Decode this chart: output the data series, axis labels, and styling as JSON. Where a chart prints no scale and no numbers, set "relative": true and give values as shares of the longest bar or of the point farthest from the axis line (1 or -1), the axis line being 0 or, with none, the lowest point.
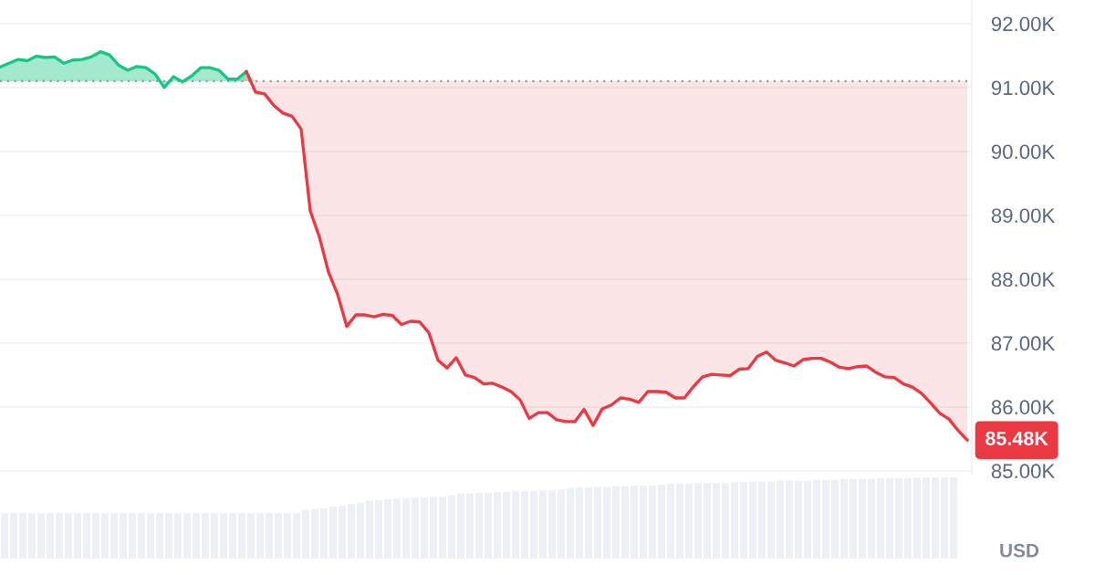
{
  "chart_data": [
    {
      "type": "line",
      "categories": [
        null,
        null,
        null,
        null,
        null,
        null,
        null,
        null,
        null,
        null,
        null,
        null,
        null,
        null,
        null,
        null,
        null,
        null,
        null,
        null,
        null,
        null,
        null,
        null,
        null,
        null,
        null,
        null,
        null,
        null,
        null,
        null,
        null,
        null,
        null,
        null,
        null,
        null,
        null,
        null,
        null,
        null,
        null,
        null,
        null,
        null,
        null,
        null,
        null,
        null,
        null,
        null,
        null,
        null,
        null,
        null,
        null,
        null,
        null,
        null,
        null,
        null,
        null,
        null,
        null,
        null,
        null,
        null,
        null,
        null,
        null,
        null,
        null,
        null,
        null,
        null,
        null,
        null,
        null,
        null,
        null,
        null,
        null,
        null,
        null,
        null,
        null,
        null,
        null,
        null,
        null,
        null,
        null,
        null,
        null,
        null,
        null,
        null,
        null,
        null,
        null,
        null,
        null,
        null,
        null,
        null,
        null
      ],
      "series": [
        {
          "color": "#16c784",
          "values": [
            91320,
            91380,
            91440,
            91420,
            91490,
            91470,
            91480,
            91380,
            91430,
            91440,
            91480,
            91560,
            91510,
            91350,
            91270,
            91330,
            91310,
            91210,
            91000,
            91170,
            91090,
            91180,
            91310,
            91310,
            91270,
            91130,
            91130,
            91250,
            null,
            null,
            null,
            null,
            null,
            null,
            null,
            null,
            null,
            null,
            null,
            null,
            null,
            null,
            null,
            null,
            null,
            null,
            null,
            null,
            null,
            null,
            null,
            null,
            null,
            null,
            null,
            null,
            null,
            null,
            null,
            null,
            null,
            null,
            null,
            null,
            null,
            null,
            null,
            null,
            null,
            null,
            null,
            null,
            null,
            null,
            null,
            null,
            null,
            null,
            null,
            null,
            null,
            null,
            null,
            null,
            null,
            null,
            null,
            null,
            null,
            null,
            null,
            null,
            null,
            null,
            null,
            null,
            null,
            null,
            null,
            null,
            null,
            null,
            null,
            null,
            null,
            null,
            null
          ],
          "lower": [
            91100,
            91100,
            91100,
            91100,
            91100,
            91100,
            91100,
            91100,
            91100,
            91100,
            91100,
            91100,
            91100,
            91100,
            91100,
            91100,
            91100,
            91100,
            91100,
            91100,
            91100,
            91100,
            91100,
            91100,
            91100,
            91100,
            91100,
            91100,
            91100,
            91100,
            91100,
            91100,
            91100,
            91100,
            91100,
            91100,
            91100,
            91100,
            91100,
            91100,
            91100,
            91100,
            91100,
            91100,
            91100,
            91100,
            91100,
            91100,
            91100,
            91100,
            91100,
            91100,
            91100,
            91100,
            91100,
            91100,
            91100,
            91100,
            91100,
            91100,
            91100,
            91100,
            91100,
            91100,
            91100,
            91100,
            91100,
            91100,
            91100,
            91100,
            91100,
            91100,
            91100,
            91100,
            91100,
            91100,
            91100,
            91100,
            91100,
            91100,
            91100,
            91100,
            91100,
            91100,
            91100,
            91100,
            91100,
            91100,
            91100,
            91100,
            91100,
            91100,
            91100,
            91100,
            91100,
            91100,
            91100,
            91100,
            91100,
            91100,
            91100,
            91100,
            91100,
            91100,
            91100,
            91100,
            91100
          ],
          "upper": [
            91320,
            91380,
            91440,
            91420,
            91490,
            91470,
            91480,
            91380,
            91430,
            91440,
            91480,
            91560,
            91510,
            91350,
            91270,
            91330,
            91310,
            91210,
            91000,
            91170,
            91090,
            91180,
            91310,
            91310,
            91270,
            91130,
            91130,
            91250,
            91100,
            91100,
            91100,
            91100,
            91100,
            91100,
            91100,
            91100,
            91100,
            91100,
            91100,
            91100,
            91100,
            91100,
            91100,
            91100,
            91100,
            91100,
            91100,
            91100,
            91100,
            91100,
            91100,
            91100,
            91100,
            91100,
            91100,
            91100,
            91100,
            91100,
            91100,
            91100,
            91100,
            91100,
            91100,
            91100,
            91100,
            91100,
            91100,
            91100,
            91100,
            91100,
            91100,
            91100,
            91100,
            91100,
            91100,
            91100,
            91100,
            91100,
            91100,
            91100,
            91100,
            91100,
            91100,
            91100,
            91100,
            91100,
            91100,
            91100,
            91100,
            91100,
            91100,
            91100,
            91100,
            91100,
            91100,
            91100,
            91100,
            91100,
            91100,
            91100,
            91100,
            91100,
            91100,
            91100,
            91100,
            91100,
            91100
          ]
        },
        {
          "color": "#ea3943",
          "values": [
            null,
            null,
            null,
            null,
            null,
            null,
            null,
            null,
            null,
            null,
            null,
            null,
            null,
            null,
            null,
            null,
            null,
            null,
            null,
            null,
            null,
            null,
            null,
            null,
            null,
            null,
            null,
            91250,
            90930,
            90900,
            90720,
            90600,
            90550,
            90350,
            89070,
            88660,
            88110,
            87760,
            87260,
            87440,
            87440,
            87410,
            87450,
            87430,
            87290,
            87340,
            87330,
            87160,
            86730,
            86610,
            86770,
            86500,
            86460,
            86360,
            86370,
            86310,
            86240,
            86110,
            85820,
            85910,
            85910,
            85800,
            85770,
            85770,
            85960,
            85710,
            85970,
            86030,
            86140,
            86120,
            86070,
            86240,
            86240,
            86230,
            86140,
            86140,
            86320,
            86470,
            86510,
            86500,
            86490,
            86590,
            86600,
            86790,
            86860,
            86730,
            86690,
            86640,
            86740,
            86760,
            86760,
            86700,
            86620,
            86600,
            86630,
            86640,
            86540,
            86470,
            86460,
            86360,
            86310,
            86210,
            86060,
            85900,
            85810,
            85630,
            85480
          ],
          "lower": [
            91100,
            91100,
            91100,
            91100,
            91100,
            91100,
            91100,
            91100,
            91100,
            91100,
            91100,
            91100,
            91100,
            91100,
            91100,
            91100,
            91100,
            91100,
            91100,
            91100,
            91100,
            91100,
            91100,
            91100,
            91100,
            91100,
            91100,
            91250,
            90930,
            90900,
            90720,
            90600,
            90550,
            90350,
            89070,
            88660,
            88110,
            87760,
            87260,
            87440,
            87440,
            87410,
            87450,
            87430,
            87290,
            87340,
            87330,
            87160,
            86730,
            86610,
            86770,
            86500,
            86460,
            86360,
            86370,
            86310,
            86240,
            86110,
            85820,
            85910,
            85910,
            85800,
            85770,
            85770,
            85960,
            85710,
            85970,
            86030,
            86140,
            86120,
            86070,
            86240,
            86240,
            86230,
            86140,
            86140,
            86320,
            86470,
            86510,
            86500,
            86490,
            86590,
            86600,
            86790,
            86860,
            86730,
            86690,
            86640,
            86740,
            86760,
            86760,
            86700,
            86620,
            86600,
            86630,
            86640,
            86540,
            86470,
            86460,
            86360,
            86310,
            86210,
            86060,
            85900,
            85810,
            85630,
            85480
          ],
          "upper": [
            91100,
            91100,
            91100,
            91100,
            91100,
            91100,
            91100,
            91100,
            91100,
            91100,
            91100,
            91100,
            91100,
            91100,
            91100,
            91100,
            91100,
            91100,
            91100,
            91100,
            91100,
            91100,
            91100,
            91100,
            91100,
            91100,
            91100,
            91100,
            91100,
            91100,
            91100,
            91100,
            91100,
            91100,
            91100,
            91100,
            91100,
            91100,
            91100,
            91100,
            91100,
            91100,
            91100,
            91100,
            91100,
            91100,
            91100,
            91100,
            91100,
            91100,
            91100,
            91100,
            91100,
            91100,
            91100,
            91100,
            91100,
            91100,
            91100,
            91100,
            91100,
            91100,
            91100,
            91100,
            91100,
            91100,
            91100,
            91100,
            91100,
            91100,
            91100,
            91100,
            91100,
            91100,
            91100,
            91100,
            91100,
            91100,
            91100,
            91100,
            91100,
            91100,
            91100,
            91100,
            91100,
            91100,
            91100,
            91100,
            91100,
            91100,
            91100,
            91100,
            91100,
            91100,
            91100,
            91100,
            91100,
            91100,
            91100,
            91100,
            91100,
            91100,
            91100,
            91100,
            91100,
            91100,
            91100
          ],
          "value_labels": [
            null,
            null,
            null,
            null,
            null,
            null,
            null,
            null,
            null,
            null,
            null,
            null,
            null,
            null,
            null,
            null,
            null,
            null,
            null,
            null,
            null,
            null,
            null,
            null,
            null,
            null,
            null,
            null,
            null,
            null,
            null,
            null,
            null,
            null,
            null,
            null,
            null,
            null,
            null,
            null,
            null,
            null,
            null,
            null,
            null,
            null,
            null,
            null,
            null,
            null,
            null,
            null,
            null,
            null,
            null,
            null,
            null,
            null,
            null,
            null,
            null,
            null,
            null,
            null,
            null,
            null,
            null,
            null,
            null,
            null,
            null,
            null,
            null,
            null,
            null,
            null,
            null,
            null,
            null,
            null,
            null,
            null,
            null,
            null,
            null,
            null,
            null,
            null,
            null,
            null,
            null,
            null,
            null,
            null,
            null,
            null,
            null,
            null,
            null,
            null,
            null,
            null,
            null,
            null,
            null,
            null,
            "85.48K"
          ]
        }
      ],
      "ylim": [
        84940,
        92370
      ],
      "yticks": [
        {
          "value": 85000,
          "label": "85.00K"
        },
        {
          "value": 86000,
          "label": "86.00K"
        },
        {
          "value": 87000,
          "label": "87.00K"
        },
        {
          "value": 88000,
          "label": "88.00K"
        },
        {
          "value": 89000,
          "label": "89.00K"
        },
        {
          "value": 90000,
          "label": "90.00K"
        },
        {
          "value": 91000,
          "label": "91.00K"
        },
        {
          "value": 92000,
          "label": "92.00K"
        }
      ],
      "ylabel": "USD",
      "ref_lines": [
        {
          "axis": "y",
          "value": 91100,
          "color": "#9a9a9a",
          "line_style": "dotted"
        }
      ],
      "grid": "y",
      "tick_labels": "y"
    },
    {
      "type": "bar",
      "relative": true,
      "color": "#edf0f4",
      "tick_labels": false,
      "categories": [
        null,
        null,
        null,
        null,
        null,
        null,
        null,
        null,
        null,
        null,
        null,
        null,
        null,
        null,
        null,
        null,
        null,
        null,
        null,
        null,
        null,
        null,
        null,
        null,
        null,
        null,
        null,
        null,
        null,
        null,
        null,
        null,
        null,
        null,
        null,
        null,
        null,
        null,
        null,
        null,
        null,
        null,
        null,
        null,
        null,
        null,
        null,
        null,
        null,
        null,
        null,
        null,
        null,
        null,
        null,
        null,
        null,
        null,
        null,
        null,
        null,
        null,
        null,
        null,
        null,
        null,
        null,
        null,
        null,
        null,
        null,
        null,
        null,
        null,
        null,
        null,
        null,
        null,
        null,
        null,
        null,
        null,
        null,
        null,
        null,
        null,
        null,
        null,
        null,
        null,
        null,
        null,
        null,
        null,
        null,
        null,
        null,
        null,
        null,
        null,
        null,
        null,
        null,
        null,
        null
      ],
      "values": [
        0.56,
        0.56,
        0.56,
        0.56,
        0.56,
        0.56,
        0.56,
        0.56,
        0.56,
        0.56,
        0.56,
        0.56,
        0.56,
        0.56,
        0.56,
        0.56,
        0.56,
        0.56,
        0.56,
        0.56,
        0.56,
        0.56,
        0.56,
        0.56,
        0.56,
        0.56,
        0.56,
        0.56,
        0.56,
        0.56,
        0.56,
        0.56,
        0.56,
        0.6,
        0.61,
        0.62,
        0.64,
        0.65,
        0.67,
        0.69,
        0.71,
        0.72,
        0.73,
        0.74,
        0.74,
        0.75,
        0.75,
        0.76,
        0.76,
        0.78,
        0.8,
        0.8,
        0.81,
        0.81,
        0.82,
        0.82,
        0.83,
        0.83,
        0.83,
        0.84,
        0.84,
        0.85,
        0.87,
        0.88,
        0.88,
        0.88,
        0.88,
        0.89,
        0.89,
        0.9,
        0.9,
        0.9,
        0.91,
        0.92,
        0.92,
        0.92,
        0.93,
        0.93,
        0.93,
        0.93,
        0.94,
        0.94,
        0.95,
        0.95,
        0.95,
        0.96,
        0.96,
        0.96,
        0.96,
        0.97,
        0.97,
        0.97,
        0.98,
        0.98,
        0.98,
        0.98,
        0.99,
        0.99,
        0.99,
        0.99,
        1,
        1,
        1,
        1,
        1
      ]
    }
  ]
}
